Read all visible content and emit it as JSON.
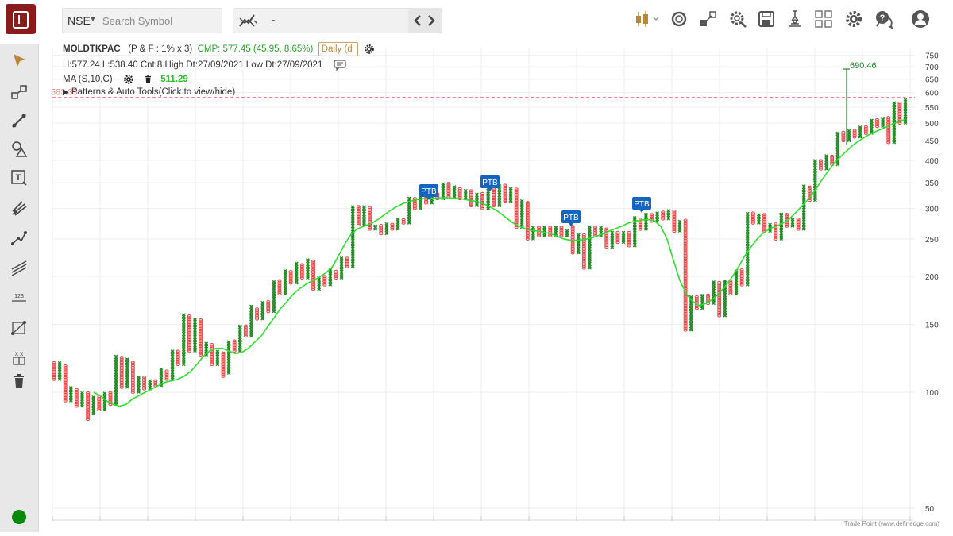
{
  "header": {
    "exchange": "NSE",
    "search_placeholder": "Search Symbol",
    "compare_value": "-"
  },
  "toolbar_icons": [
    "candle-type-icon",
    "ring-icon",
    "expand-icon",
    "settings-search-icon",
    "save-icon",
    "scanner-icon",
    "layout-grid-icon",
    "gear-icon",
    "help-chat-icon",
    "user-icon"
  ],
  "chart_info": {
    "symbol": "MOLDTKPAC",
    "settings": "(P & F : 1% x 3)",
    "cmp": "CMP: 577.45 (45.95, 8.65%)",
    "interval": "Daily (d",
    "ohlc": "H:577.24 L:538.40 Cnt:8 High Dt:27/09/2021 Low Dt:27/09/2021",
    "ma_label": "MA (S,10,C)",
    "ma_value": "511.29",
    "patterns_label": "Patterns & Auto Tools(Click to view/hide)",
    "price_line_label": "583.35"
  },
  "chart_data": {
    "type": "point-and-figure",
    "y_axis": {
      "scale": "log",
      "ticks": [
        750,
        700,
        650,
        600,
        550,
        500,
        450,
        400,
        350,
        300,
        250,
        200,
        150,
        100,
        50
      ]
    },
    "x_labels": [],
    "columns": [
      {
        "t": "O",
        "l": 108,
        "h": 120
      },
      {
        "t": "X",
        "l": 108,
        "h": 120
      },
      {
        "t": "O",
        "l": 95,
        "h": 118
      },
      {
        "t": "X",
        "l": 95,
        "h": 103
      },
      {
        "t": "O",
        "l": 92,
        "h": 102
      },
      {
        "t": "X",
        "l": 92,
        "h": 100
      },
      {
        "t": "O",
        "l": 85,
        "h": 100
      },
      {
        "t": "X",
        "l": 88,
        "h": 98
      },
      {
        "t": "O",
        "l": 90,
        "h": 98
      },
      {
        "t": "X",
        "l": 90,
        "h": 100
      },
      {
        "t": "O",
        "l": 93,
        "h": 100
      },
      {
        "t": "X",
        "l": 93,
        "h": 125
      },
      {
        "t": "O",
        "l": 103,
        "h": 124
      },
      {
        "t": "X",
        "l": 103,
        "h": 122
      },
      {
        "t": "O",
        "l": 100,
        "h": 120
      },
      {
        "t": "X",
        "l": 100,
        "h": 110
      },
      {
        "t": "O",
        "l": 102,
        "h": 110
      },
      {
        "t": "X",
        "l": 102,
        "h": 108
      },
      {
        "t": "O",
        "l": 104,
        "h": 108
      },
      {
        "t": "X",
        "l": 104,
        "h": 115
      },
      {
        "t": "O",
        "l": 108,
        "h": 114
      },
      {
        "t": "X",
        "l": 108,
        "h": 128
      },
      {
        "t": "O",
        "l": 118,
        "h": 128
      },
      {
        "t": "X",
        "l": 118,
        "h": 160
      },
      {
        "t": "O",
        "l": 128,
        "h": 158
      },
      {
        "t": "X",
        "l": 128,
        "h": 156
      },
      {
        "t": "O",
        "l": 125,
        "h": 155
      },
      {
        "t": "X",
        "l": 125,
        "h": 135
      },
      {
        "t": "O",
        "l": 118,
        "h": 134
      },
      {
        "t": "X",
        "l": 118,
        "h": 128
      },
      {
        "t": "O",
        "l": 110,
        "h": 127
      },
      {
        "t": "X",
        "l": 112,
        "h": 136
      },
      {
        "t": "O",
        "l": 128,
        "h": 136
      },
      {
        "t": "X",
        "l": 128,
        "h": 150
      },
      {
        "t": "O",
        "l": 140,
        "h": 150
      },
      {
        "t": "X",
        "l": 140,
        "h": 168
      },
      {
        "t": "O",
        "l": 155,
        "h": 166
      },
      {
        "t": "X",
        "l": 155,
        "h": 172
      },
      {
        "t": "O",
        "l": 162,
        "h": 172
      },
      {
        "t": "X",
        "l": 162,
        "h": 195
      },
      {
        "t": "O",
        "l": 180,
        "h": 195
      },
      {
        "t": "X",
        "l": 180,
        "h": 208
      },
      {
        "t": "O",
        "l": 192,
        "h": 206
      },
      {
        "t": "X",
        "l": 192,
        "h": 218
      },
      {
        "t": "O",
        "l": 198,
        "h": 216
      },
      {
        "t": "X",
        "l": 198,
        "h": 222
      },
      {
        "t": "O",
        "l": 185,
        "h": 220
      },
      {
        "t": "X",
        "l": 185,
        "h": 200
      },
      {
        "t": "O",
        "l": 190,
        "h": 200
      },
      {
        "t": "X",
        "l": 190,
        "h": 208
      },
      {
        "t": "O",
        "l": 198,
        "h": 207
      },
      {
        "t": "X",
        "l": 198,
        "h": 225
      },
      {
        "t": "O",
        "l": 212,
        "h": 224
      },
      {
        "t": "X",
        "l": 212,
        "h": 305
      },
      {
        "t": "O",
        "l": 272,
        "h": 304
      },
      {
        "t": "X",
        "l": 272,
        "h": 305
      },
      {
        "t": "O",
        "l": 265,
        "h": 304
      },
      {
        "t": "X",
        "l": 265,
        "h": 272
      },
      {
        "t": "O",
        "l": 258,
        "h": 272
      },
      {
        "t": "X",
        "l": 258,
        "h": 275
      },
      {
        "t": "O",
        "l": 265,
        "h": 274
      },
      {
        "t": "X",
        "l": 265,
        "h": 282
      },
      {
        "t": "O",
        "l": 275,
        "h": 282
      },
      {
        "t": "X",
        "l": 275,
        "h": 320
      },
      {
        "t": "O",
        "l": 300,
        "h": 320
      },
      {
        "t": "X",
        "l": 300,
        "h": 335
      },
      {
        "t": "O",
        "l": 310,
        "h": 334
      },
      {
        "t": "X",
        "l": 310,
        "h": 330
      },
      {
        "t": "O",
        "l": 318,
        "h": 330
      },
      {
        "t": "X",
        "l": 318,
        "h": 350
      },
      {
        "t": "O",
        "l": 322,
        "h": 350
      },
      {
        "t": "X",
        "l": 322,
        "h": 342
      },
      {
        "t": "O",
        "l": 318,
        "h": 340
      },
      {
        "t": "X",
        "l": 318,
        "h": 335
      },
      {
        "t": "O",
        "l": 305,
        "h": 334
      },
      {
        "t": "X",
        "l": 305,
        "h": 330
      },
      {
        "t": "O",
        "l": 300,
        "h": 330
      },
      {
        "t": "X",
        "l": 300,
        "h": 340
      },
      {
        "t": "O",
        "l": 305,
        "h": 338
      },
      {
        "t": "X",
        "l": 305,
        "h": 345
      },
      {
        "t": "O",
        "l": 312,
        "h": 345
      },
      {
        "t": "X",
        "l": 312,
        "h": 340
      },
      {
        "t": "O",
        "l": 268,
        "h": 340
      },
      {
        "t": "X",
        "l": 268,
        "h": 315
      },
      {
        "t": "O",
        "l": 250,
        "h": 314
      },
      {
        "t": "X",
        "l": 250,
        "h": 270
      },
      {
        "t": "O",
        "l": 255,
        "h": 270
      },
      {
        "t": "X",
        "l": 255,
        "h": 270
      },
      {
        "t": "O",
        "l": 255,
        "h": 270
      },
      {
        "t": "X",
        "l": 255,
        "h": 270
      },
      {
        "t": "O",
        "l": 255,
        "h": 270
      },
      {
        "t": "X",
        "l": 255,
        "h": 265
      },
      {
        "t": "O",
        "l": 230,
        "h": 270
      },
      {
        "t": "X",
        "l": 230,
        "h": 258
      },
      {
        "t": "O",
        "l": 210,
        "h": 258
      },
      {
        "t": "X",
        "l": 210,
        "h": 270
      },
      {
        "t": "O",
        "l": 255,
        "h": 270
      },
      {
        "t": "X",
        "l": 255,
        "h": 268
      },
      {
        "t": "O",
        "l": 238,
        "h": 268
      },
      {
        "t": "X",
        "l": 238,
        "h": 262
      },
      {
        "t": "O",
        "l": 245,
        "h": 262
      },
      {
        "t": "X",
        "l": 245,
        "h": 262
      },
      {
        "t": "O",
        "l": 240,
        "h": 262
      },
      {
        "t": "X",
        "l": 240,
        "h": 285
      },
      {
        "t": "O",
        "l": 265,
        "h": 284
      },
      {
        "t": "X",
        "l": 265,
        "h": 290
      },
      {
        "t": "O",
        "l": 278,
        "h": 290
      },
      {
        "t": "X",
        "l": 278,
        "h": 295
      },
      {
        "t": "O",
        "l": 282,
        "h": 295
      },
      {
        "t": "X",
        "l": 282,
        "h": 298
      },
      {
        "t": "O",
        "l": 262,
        "h": 296
      },
      {
        "t": "X",
        "l": 262,
        "h": 280
      },
      {
        "t": "O",
        "l": 145,
        "h": 280
      },
      {
        "t": "X",
        "l": 145,
        "h": 178
      },
      {
        "t": "O",
        "l": 165,
        "h": 177
      },
      {
        "t": "X",
        "l": 165,
        "h": 180
      },
      {
        "t": "O",
        "l": 170,
        "h": 180
      },
      {
        "t": "X",
        "l": 170,
        "h": 195
      },
      {
        "t": "O",
        "l": 158,
        "h": 194
      },
      {
        "t": "X",
        "l": 158,
        "h": 195
      },
      {
        "t": "O",
        "l": 180,
        "h": 195
      },
      {
        "t": "X",
        "l": 180,
        "h": 208
      },
      {
        "t": "O",
        "l": 190,
        "h": 208
      },
      {
        "t": "X",
        "l": 190,
        "h": 292
      },
      {
        "t": "O",
        "l": 275,
        "h": 292
      },
      {
        "t": "X",
        "l": 275,
        "h": 290
      },
      {
        "t": "O",
        "l": 262,
        "h": 290
      },
      {
        "t": "X",
        "l": 262,
        "h": 275
      },
      {
        "t": "O",
        "l": 250,
        "h": 274
      },
      {
        "t": "X",
        "l": 250,
        "h": 292
      },
      {
        "t": "O",
        "l": 270,
        "h": 292
      },
      {
        "t": "X",
        "l": 270,
        "h": 282
      },
      {
        "t": "O",
        "l": 265,
        "h": 282
      },
      {
        "t": "X",
        "l": 265,
        "h": 345
      },
      {
        "t": "O",
        "l": 315,
        "h": 344
      },
      {
        "t": "X",
        "l": 315,
        "h": 400
      },
      {
        "t": "O",
        "l": 380,
        "h": 400
      },
      {
        "t": "X",
        "l": 380,
        "h": 412
      },
      {
        "t": "O",
        "l": 390,
        "h": 410
      },
      {
        "t": "X",
        "l": 390,
        "h": 475
      },
      {
        "t": "O",
        "l": 450,
        "h": 474
      },
      {
        "t": "X",
        "l": 450,
        "h": 480
      },
      {
        "t": "O",
        "l": 460,
        "h": 480
      },
      {
        "t": "X",
        "l": 460,
        "h": 490
      },
      {
        "t": "O",
        "l": 470,
        "h": 490
      },
      {
        "t": "X",
        "l": 470,
        "h": 510
      },
      {
        "t": "O",
        "l": 490,
        "h": 510
      },
      {
        "t": "X",
        "l": 490,
        "h": 520
      },
      {
        "t": "O",
        "l": 445,
        "h": 518
      },
      {
        "t": "X",
        "l": 445,
        "h": 570
      },
      {
        "t": "O",
        "l": 500,
        "h": 568
      },
      {
        "t": "X",
        "l": 500,
        "h": 577
      }
    ],
    "ma": {
      "name": "MA (S,10,C)",
      "value": 511.29,
      "values": [
        100,
        98,
        95,
        93,
        92,
        93,
        96,
        98,
        100,
        102,
        104,
        106,
        107,
        108,
        110,
        113,
        118,
        124,
        128,
        130,
        130,
        128,
        126,
        127,
        130,
        135,
        140,
        148,
        156,
        165,
        172,
        180,
        186,
        191,
        195,
        199,
        204,
        211,
        226,
        243,
        258,
        266,
        270,
        274,
        280,
        288,
        296,
        303,
        309,
        313,
        316,
        318,
        319,
        319,
        320,
        320,
        319,
        318,
        316,
        314,
        311,
        306,
        300,
        293,
        284,
        276,
        270,
        266,
        263,
        262,
        260,
        258,
        254,
        250,
        248,
        248,
        249,
        251,
        254,
        258,
        262,
        266,
        270,
        275,
        278,
        280,
        281,
        279,
        270,
        250,
        220,
        195,
        180,
        172,
        168,
        170,
        174,
        180,
        188,
        198,
        210,
        225,
        238,
        250,
        260,
        266,
        270,
        275,
        282,
        293,
        305,
        318,
        335,
        355,
        375,
        395,
        410,
        425,
        440,
        452,
        463,
        472,
        480,
        488,
        497,
        505,
        511
      ]
    },
    "wick": {
      "high": 690.46,
      "high_label": "690.46"
    },
    "price_line": 583.35,
    "annotations": [
      "PTB",
      "PTB",
      "PTB",
      "PTB"
    ],
    "credit": "Trade Point (www.definedge.com)"
  }
}
